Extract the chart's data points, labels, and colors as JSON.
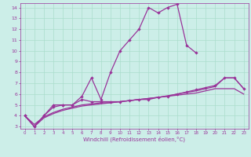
{
  "xlabel": "Windchill (Refroidissement éolien,°C)",
  "bg_color": "#cceee8",
  "grid_color": "#aaddcc",
  "line_color": "#993399",
  "xlim": [
    -0.5,
    23.5
  ],
  "ylim": [
    2.8,
    14.4
  ],
  "yticks": [
    3,
    4,
    5,
    6,
    7,
    8,
    9,
    10,
    11,
    12,
    13,
    14
  ],
  "xticks": [
    0,
    1,
    2,
    3,
    4,
    5,
    6,
    7,
    8,
    9,
    10,
    11,
    12,
    13,
    14,
    15,
    16,
    17,
    18,
    19,
    20,
    21,
    22,
    23
  ],
  "line1_x": [
    0,
    1,
    2,
    3,
    4,
    5,
    6,
    7,
    8,
    9,
    10,
    11,
    12,
    13,
    14,
    15,
    16,
    17,
    18
  ],
  "line1_y": [
    4.0,
    3.0,
    4.0,
    5.0,
    5.0,
    5.0,
    5.8,
    7.5,
    5.5,
    8.0,
    10.0,
    11.0,
    12.0,
    14.0,
    13.5,
    14.0,
    14.3,
    10.5,
    9.8
  ],
  "line2_x": [
    0,
    1,
    2,
    3,
    4,
    5,
    6,
    7,
    8,
    9,
    10,
    11,
    12,
    13,
    14,
    15,
    16,
    17,
    18,
    19,
    20,
    21,
    22,
    23
  ],
  "line2_y": [
    4.0,
    3.0,
    4.0,
    4.8,
    5.0,
    5.0,
    5.5,
    5.3,
    5.3,
    5.3,
    5.3,
    5.4,
    5.5,
    5.5,
    5.7,
    5.8,
    6.0,
    6.2,
    6.4,
    6.6,
    6.8,
    7.5,
    7.5,
    6.5
  ],
  "line3_x": [
    0,
    1,
    2,
    3,
    4,
    5,
    6,
    7,
    8,
    9,
    10,
    11,
    12,
    13,
    14,
    15,
    16,
    17,
    18,
    19,
    20,
    21,
    22,
    23
  ],
  "line3_y": [
    4.0,
    3.2,
    3.9,
    4.3,
    4.6,
    4.8,
    5.0,
    5.1,
    5.2,
    5.2,
    5.3,
    5.4,
    5.5,
    5.6,
    5.7,
    5.8,
    5.9,
    6.0,
    6.1,
    6.3,
    6.5,
    6.5,
    6.5,
    6.0
  ],
  "line4_x": [
    0,
    1,
    2,
    3,
    4,
    5,
    6,
    7,
    8,
    9,
    10,
    11,
    12,
    13,
    14,
    15,
    16,
    17,
    18,
    19,
    20,
    21,
    22,
    23
  ],
  "line4_y": [
    4.0,
    3.0,
    3.8,
    4.2,
    4.5,
    4.7,
    4.9,
    5.0,
    5.1,
    5.2,
    5.3,
    5.4,
    5.5,
    5.6,
    5.7,
    5.85,
    6.0,
    6.15,
    6.3,
    6.5,
    6.7,
    7.5,
    7.5,
    6.5
  ]
}
